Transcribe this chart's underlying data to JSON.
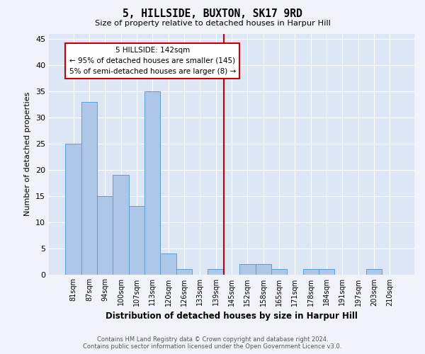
{
  "title": "5, HILLSIDE, BUXTON, SK17 9RD",
  "subtitle": "Size of property relative to detached houses in Harpur Hill",
  "xlabel": "Distribution of detached houses by size in Harpur Hill",
  "ylabel": "Number of detached properties",
  "categories": [
    "81sqm",
    "87sqm",
    "94sqm",
    "100sqm",
    "107sqm",
    "113sqm",
    "120sqm",
    "126sqm",
    "133sqm",
    "139sqm",
    "145sqm",
    "152sqm",
    "158sqm",
    "165sqm",
    "171sqm",
    "178sqm",
    "184sqm",
    "191sqm",
    "197sqm",
    "203sqm",
    "210sqm"
  ],
  "values": [
    25,
    33,
    15,
    19,
    13,
    35,
    4,
    1,
    0,
    1,
    0,
    2,
    2,
    1,
    0,
    1,
    1,
    0,
    0,
    1,
    0
  ],
  "bar_color": "#aec6e8",
  "bar_edge_color": "#5a9fd4",
  "background_color": "#dce6f5",
  "grid_color": "#ffffff",
  "vline_x_index": 9.5,
  "vline_color": "#cc0000",
  "annotation_text": "5 HILLSIDE: 142sqm\n← 95% of detached houses are smaller (145)\n5% of semi-detached houses are larger (8) →",
  "annotation_box_color": "#cc0000",
  "ylim": [
    0,
    46
  ],
  "yticks": [
    0,
    5,
    10,
    15,
    20,
    25,
    30,
    35,
    40,
    45
  ],
  "footer_line1": "Contains HM Land Registry data © Crown copyright and database right 2024.",
  "footer_line2": "Contains public sector information licensed under the Open Government Licence v3.0."
}
